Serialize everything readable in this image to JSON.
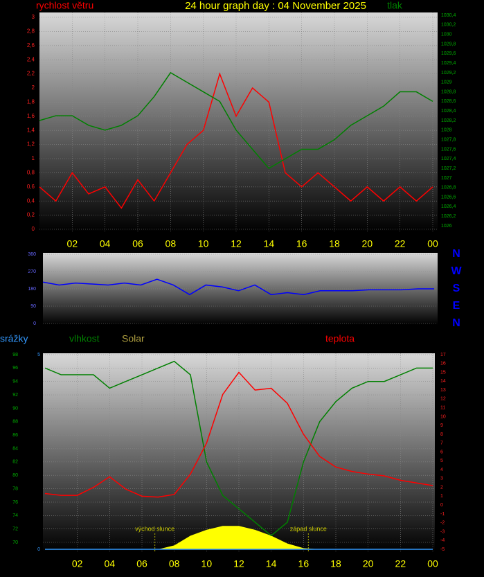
{
  "chart_data": [
    {
      "type": "line",
      "title": "24 hour graph day : 04 November 2025",
      "x": [
        0,
        1,
        2,
        3,
        4,
        5,
        6,
        7,
        8,
        9,
        10,
        11,
        12,
        13,
        14,
        15,
        16,
        17,
        18,
        19,
        20,
        21,
        22,
        23,
        24
      ],
      "xlim": [
        0,
        24
      ],
      "xticks": [
        {
          "value": 2,
          "label": "02"
        },
        {
          "value": 4,
          "label": "04"
        },
        {
          "value": 6,
          "label": "06"
        },
        {
          "value": 8,
          "label": "08"
        },
        10,
        12,
        14,
        16,
        18,
        20,
        22,
        {
          "value": 24,
          "label": "00"
        }
      ],
      "ylim": [
        0,
        3
      ],
      "yticks": [
        0,
        {
          "value": 0.2,
          "label": "0,2"
        },
        {
          "value": 0.4,
          "label": "0,4"
        },
        {
          "value": 0.6,
          "label": "0,6"
        },
        {
          "value": 0.8,
          "label": "0,8"
        },
        1,
        {
          "value": 1.2,
          "label": "1,2"
        },
        {
          "value": 1.4,
          "label": "1,4"
        },
        {
          "value": 1.6,
          "label": "1,6"
        },
        {
          "value": 1.8,
          "label": "1,8"
        },
        2,
        {
          "value": 2.2,
          "label": "2,2"
        },
        {
          "value": 2.4,
          "label": "2,4"
        },
        {
          "value": 2.6,
          "label": "2,6"
        },
        {
          "value": 2.8,
          "label": "2,8"
        },
        3
      ],
      "y2lim": [
        1026,
        1030.4
      ],
      "y2ticks": [
        1026,
        {
          "value": 1026.2,
          "label": "1026,2"
        },
        {
          "value": 1026.4,
          "label": "1026,4"
        },
        {
          "value": 1026.6,
          "label": "1026,6"
        },
        {
          "value": 1026.8,
          "label": "1026,8"
        },
        1027,
        {
          "value": 1027.2,
          "label": "1027,2"
        },
        {
          "value": 1027.4,
          "label": "1027,4"
        },
        {
          "value": 1027.6,
          "label": "1027,6"
        },
        {
          "value": 1027.8,
          "label": "1027,8"
        },
        1028,
        {
          "value": 1028.2,
          "label": "1028,2"
        },
        {
          "value": 1028.4,
          "label": "1028,4"
        },
        {
          "value": 1028.6,
          "label": "1028,6"
        },
        {
          "value": 1028.8,
          "label": "1028,8"
        },
        1029,
        {
          "value": 1029.2,
          "label": "1029,2"
        },
        {
          "value": 1029.4,
          "label": "1029,4"
        },
        {
          "value": 1029.6,
          "label": "1029,6"
        },
        {
          "value": 1029.8,
          "label": "1029,8"
        },
        1030,
        {
          "value": 1030.2,
          "label": "1030,2"
        },
        {
          "value": 1030.4,
          "label": "1030,4"
        }
      ],
      "grid": true,
      "series": [
        {
          "name": "rychlost větru",
          "color": "#ff0000",
          "values": [
            0.6,
            0.4,
            0.8,
            0.5,
            0.6,
            0.3,
            0.7,
            0.4,
            0.8,
            1.2,
            1.4,
            2.2,
            1.6,
            2.0,
            1.8,
            0.8,
            0.6,
            0.8,
            0.6,
            0.4,
            0.6,
            0.4,
            0.6,
            0.4,
            0.6
          ]
        },
        {
          "name": "tlak",
          "color": "#008000",
          "axis": "y2",
          "values": [
            1028.2,
            1028.3,
            1028.3,
            1028.1,
            1028.0,
            1028.1,
            1028.3,
            1028.7,
            1029.2,
            1029.0,
            1028.8,
            1028.6,
            1028.0,
            1027.6,
            1027.2,
            1027.4,
            1027.6,
            1027.6,
            1027.8,
            1028.1,
            1028.3,
            1028.5,
            1028.8,
            1028.8,
            1028.6
          ]
        }
      ]
    },
    {
      "type": "line",
      "x": [
        0,
        1,
        2,
        3,
        4,
        5,
        6,
        7,
        8,
        9,
        10,
        11,
        12,
        13,
        14,
        15,
        16,
        17,
        18,
        19,
        20,
        21,
        22,
        23,
        24
      ],
      "xlim": [
        0,
        24
      ],
      "ylim": [
        0,
        360
      ],
      "yticks": [
        0,
        90,
        180,
        270,
        360
      ],
      "y2lim": [
        0,
        360
      ],
      "y2ticks": [
        {
          "value": 0,
          "label": "N"
        },
        {
          "value": 90,
          "label": "E"
        },
        {
          "value": 180,
          "label": "S"
        },
        {
          "value": 270,
          "label": "W"
        },
        {
          "value": 360,
          "label": "N"
        }
      ],
      "grid": true,
      "series": [
        {
          "color": "#0000ff",
          "values": [
            215,
            200,
            210,
            205,
            200,
            210,
            200,
            230,
            200,
            150,
            200,
            190,
            170,
            200,
            150,
            160,
            150,
            170,
            170,
            170,
            175,
            175,
            175,
            180,
            180
          ]
        }
      ]
    },
    {
      "type": "line",
      "x": [
        0,
        1,
        2,
        3,
        4,
        5,
        6,
        7,
        8,
        9,
        10,
        11,
        12,
        13,
        14,
        15,
        16,
        17,
        18,
        19,
        20,
        21,
        22,
        23,
        24
      ],
      "xlim": [
        0,
        24
      ],
      "xticks": [
        {
          "value": 2,
          "label": "02"
        },
        {
          "value": 4,
          "label": "04"
        },
        {
          "value": 6,
          "label": "06"
        },
        {
          "value": 8,
          "label": "08"
        },
        10,
        12,
        14,
        16,
        18,
        20,
        22,
        {
          "value": 24,
          "label": "00"
        }
      ],
      "ylim": [
        70,
        98
      ],
      "yticks": [
        70,
        72,
        74,
        76,
        78,
        80,
        82,
        84,
        86,
        88,
        90,
        92,
        94,
        96,
        98
      ],
      "y2lim": [
        -5,
        17
      ],
      "y2ticks": [
        -5,
        -4,
        -3,
        -2,
        -1,
        0,
        1,
        2,
        3,
        4,
        5,
        6,
        7,
        8,
        9,
        10,
        11,
        12,
        13,
        14,
        15,
        16,
        17
      ],
      "y3lim": [
        0,
        5
      ],
      "y3ticks": [
        0,
        5
      ],
      "grid": true,
      "series": [
        {
          "name": "srážky",
          "color": "#3399ff",
          "axis": "y3",
          "values": [
            0,
            0,
            0,
            0,
            0,
            0,
            0,
            0,
            0,
            0,
            0,
            0,
            0,
            0,
            0,
            0,
            0,
            0,
            0,
            0,
            0,
            0,
            0,
            0,
            0
          ]
        },
        {
          "name": "vlhkost",
          "color": "#008000",
          "values": [
            96,
            95,
            95,
            95,
            93,
            94,
            95,
            96,
            97,
            95,
            82,
            77,
            75,
            73,
            71,
            73,
            82,
            88,
            91,
            93,
            94,
            94,
            95,
            96,
            96
          ]
        },
        {
          "name": "Solar",
          "color": "#ffff00",
          "axis": "y3",
          "area": true,
          "values": [
            0,
            0,
            0,
            0,
            0,
            0,
            0,
            0,
            0.1,
            0.35,
            0.5,
            0.6,
            0.6,
            0.5,
            0.35,
            0.15,
            0.03,
            0,
            0,
            0,
            0,
            0,
            0,
            0,
            0
          ]
        },
        {
          "name": "teplota",
          "color": "#ff0000",
          "axis": "y2",
          "values": [
            1.3,
            1.1,
            1.1,
            2,
            3.2,
            1.8,
            1,
            0.9,
            1.2,
            3.5,
            7,
            12.5,
            15,
            13,
            13.2,
            11.5,
            8,
            5.5,
            4.3,
            3.8,
            3.5,
            3.3,
            2.8,
            2.5,
            2.2
          ]
        }
      ],
      "annotations": [
        {
          "text": "východ slunce",
          "x": 6.8
        },
        {
          "text": "západ slunce",
          "x": 16.3
        }
      ]
    }
  ]
}
